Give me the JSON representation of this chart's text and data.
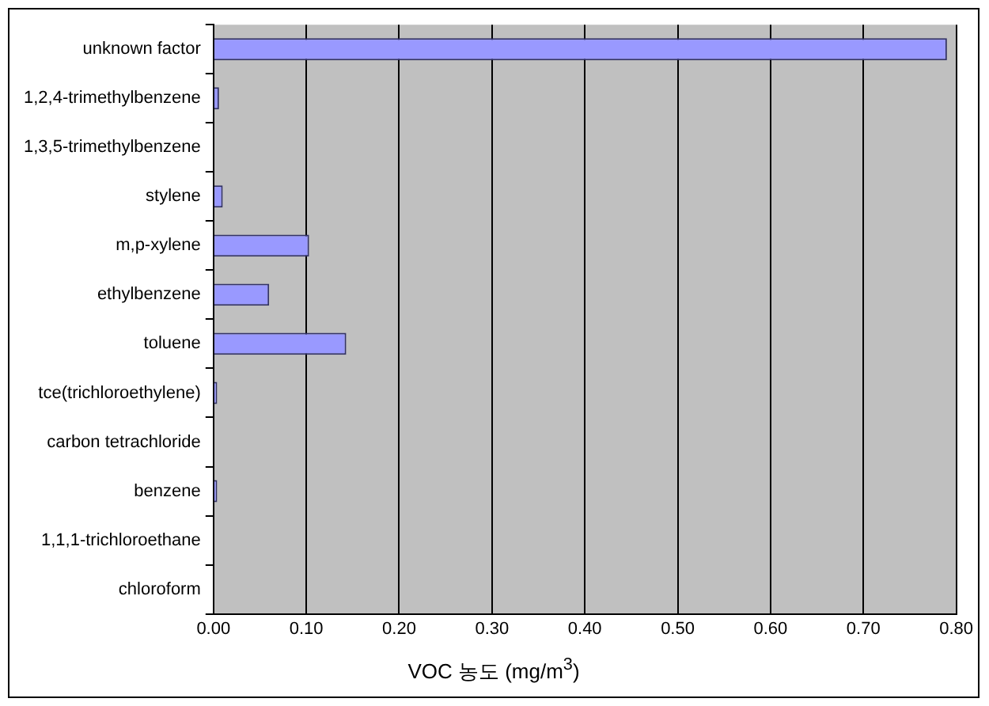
{
  "chart_data": {
    "type": "bar",
    "orientation": "horizontal",
    "xlabel": "VOC 농도 (mg/m$^{3}$)",
    "categories": [
      "unknown factor",
      "1,2,4-trimethylbenzene",
      "1,3,5-trimethylbenzene",
      "stylene",
      "m,p-xylene",
      "ethylbenzene",
      "toluene",
      "tce(trichloroethylene)",
      "carbon tetrachloride",
      "benzene",
      "1,1,1-trichloroethane",
      "chloroform"
    ],
    "values": [
      0.79,
      0.006,
      0,
      0.01,
      0.103,
      0.06,
      0.143,
      0.004,
      0,
      0.004,
      0,
      0
    ],
    "color": "#9999ff",
    "xlim": [
      0,
      0.8
    ],
    "xticks": [
      {
        "value": 0,
        "label": "0.00"
      },
      {
        "value": 0.1,
        "label": "0.10"
      },
      {
        "value": 0.2,
        "label": "0.20"
      },
      {
        "value": 0.3,
        "label": "0.30"
      },
      {
        "value": 0.4,
        "label": "0.40"
      },
      {
        "value": 0.5,
        "label": "0.50"
      },
      {
        "value": 0.6,
        "label": "0.60"
      },
      {
        "value": 0.7,
        "label": "0.70"
      },
      {
        "value": 0.8,
        "label": "0.80"
      }
    ],
    "grid": "x",
    "legend": false
  }
}
